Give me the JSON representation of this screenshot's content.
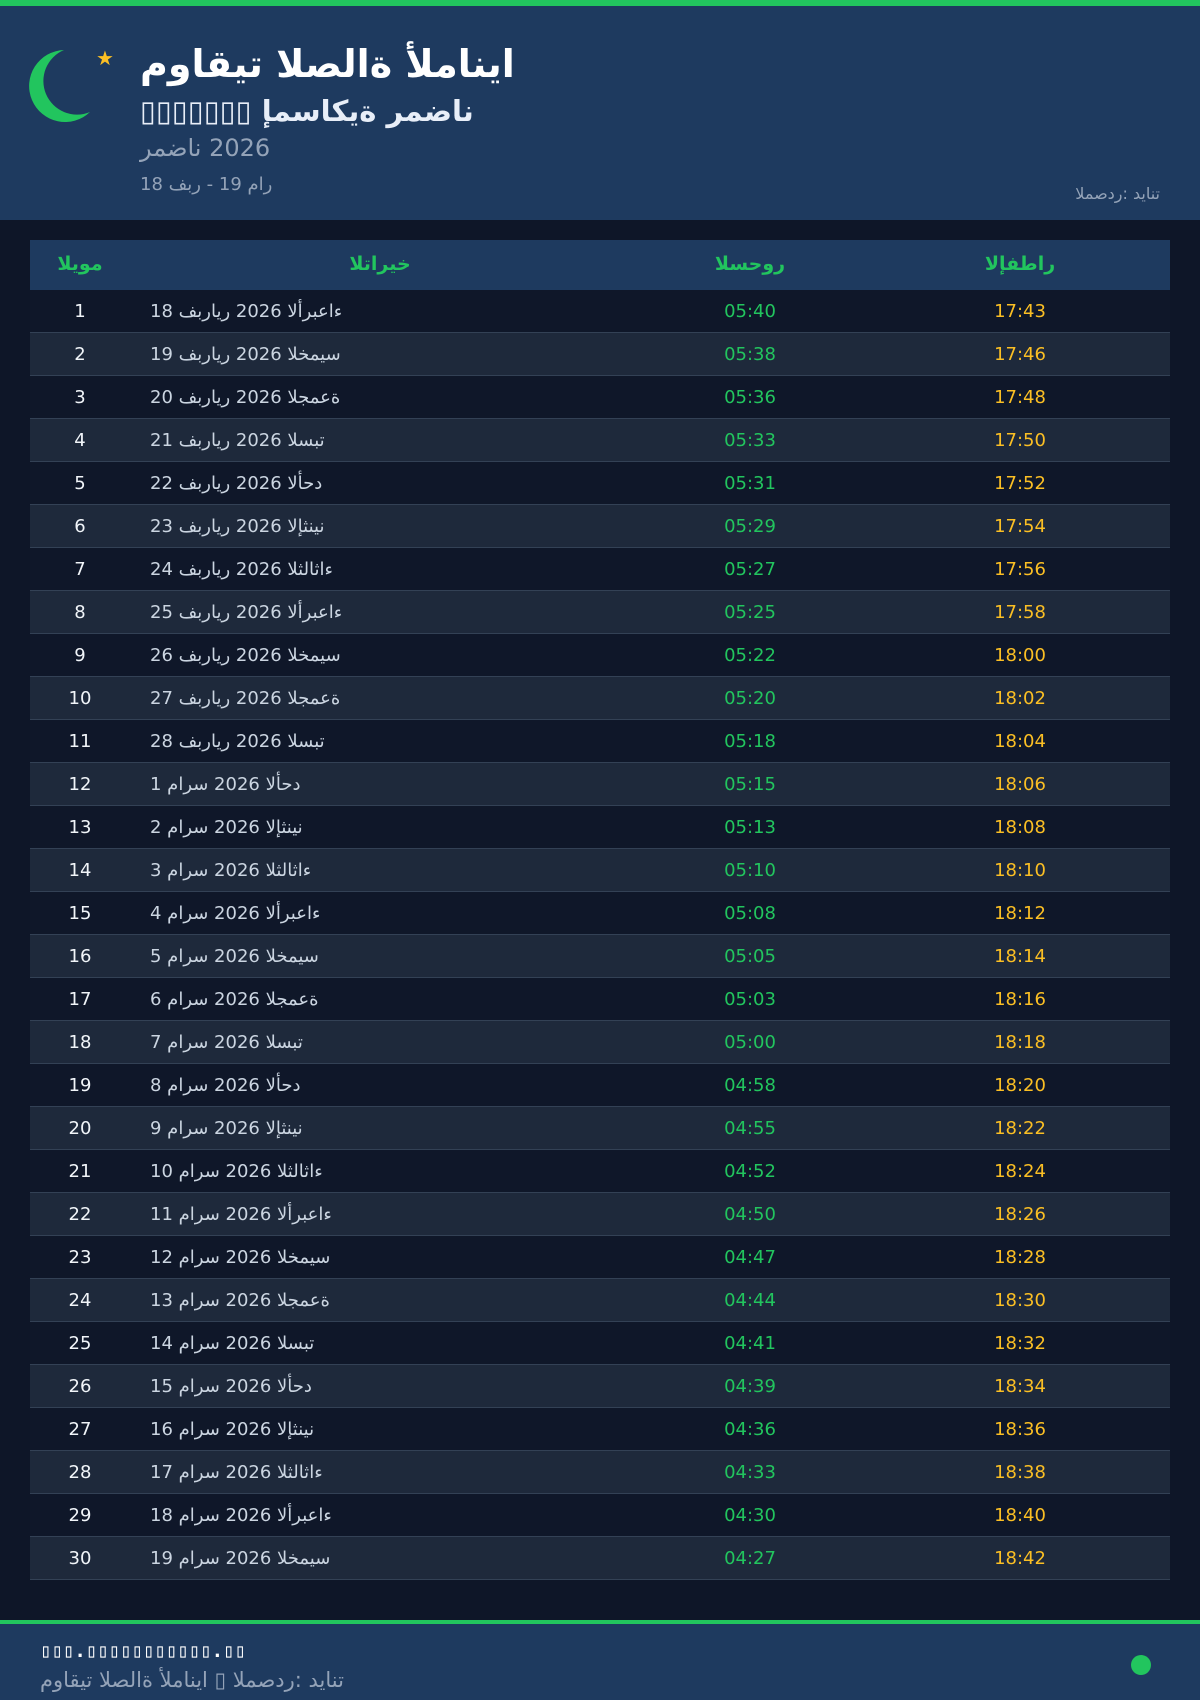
{
  "colors": {
    "accent": "#22c55e",
    "iftar": "#fbbf24",
    "header_bg": "#1e3a5f"
  },
  "header": {
    "icon": "crescent-moon-icon",
    "title": "مواقيت الصلاة ألمانيا",
    "subtitle": "▯▯▯▯▯▯▯ إمساكية رمضان",
    "year": "رمضان 2026",
    "range": "18 فبر - 19 مار",
    "source": "المصدر: ديانت"
  },
  "table": {
    "columns": [
      "اليوم",
      "التاريخ",
      "السحور",
      "الإفطار"
    ],
    "rows": [
      [
        "1",
        "18 فبراير 2026 الأربعاء",
        "05:40",
        "17:43"
      ],
      [
        "2",
        "19 فبراير 2026 الخميس",
        "05:38",
        "17:46"
      ],
      [
        "3",
        "20 فبراير 2026 الجمعة",
        "05:36",
        "17:48"
      ],
      [
        "4",
        "21 فبراير 2026 السبت",
        "05:33",
        "17:50"
      ],
      [
        "5",
        "22 فبراير 2026 الأحد",
        "05:31",
        "17:52"
      ],
      [
        "6",
        "23 فبراير 2026 الإثنين",
        "05:29",
        "17:54"
      ],
      [
        "7",
        "24 فبراير 2026 الثلاثاء",
        "05:27",
        "17:56"
      ],
      [
        "8",
        "25 فبراير 2026 الأربعاء",
        "05:25",
        "17:58"
      ],
      [
        "9",
        "26 فبراير 2026 الخميس",
        "05:22",
        "18:00"
      ],
      [
        "10",
        "27 فبراير 2026 الجمعة",
        "05:20",
        "18:02"
      ],
      [
        "11",
        "28 فبراير 2026 السبت",
        "05:18",
        "18:04"
      ],
      [
        "12",
        "1 مارس 2026 الأحد",
        "05:15",
        "18:06"
      ],
      [
        "13",
        "2 مارس 2026 الإثنين",
        "05:13",
        "18:08"
      ],
      [
        "14",
        "3 مارس 2026 الثلاثاء",
        "05:10",
        "18:10"
      ],
      [
        "15",
        "4 مارس 2026 الأربعاء",
        "05:08",
        "18:12"
      ],
      [
        "16",
        "5 مارس 2026 الخميس",
        "05:05",
        "18:14"
      ],
      [
        "17",
        "6 مارس 2026 الجمعة",
        "05:03",
        "18:16"
      ],
      [
        "18",
        "7 مارس 2026 السبت",
        "05:00",
        "18:18"
      ],
      [
        "19",
        "8 مارس 2026 الأحد",
        "04:58",
        "18:20"
      ],
      [
        "20",
        "9 مارس 2026 الإثنين",
        "04:55",
        "18:22"
      ],
      [
        "21",
        "10 مارس 2026 الثلاثاء",
        "04:52",
        "18:24"
      ],
      [
        "22",
        "11 مارس 2026 الأربعاء",
        "04:50",
        "18:26"
      ],
      [
        "23",
        "12 مارس 2026 الخميس",
        "04:47",
        "18:28"
      ],
      [
        "24",
        "13 مارس 2026 الجمعة",
        "04:44",
        "18:30"
      ],
      [
        "25",
        "14 مارس 2026 السبت",
        "04:41",
        "18:32"
      ],
      [
        "26",
        "15 مارس 2026 الأحد",
        "04:39",
        "18:34"
      ],
      [
        "27",
        "16 مارس 2026 الإثنين",
        "04:36",
        "18:36"
      ],
      [
        "28",
        "17 مارس 2026 الثلاثاء",
        "04:33",
        "18:38"
      ],
      [
        "29",
        "18 مارس 2026 الأربعاء",
        "04:30",
        "18:40"
      ],
      [
        "30",
        "19 مارس 2026 الخميس",
        "04:27",
        "18:42"
      ]
    ]
  },
  "footer": {
    "website": "▯▯▯.▯▯▯▯▯▯▯▯▯▯▯.▯▯",
    "caption": "مواقيت الصلاة ألمانيا ▯ المصدر: ديانت"
  }
}
